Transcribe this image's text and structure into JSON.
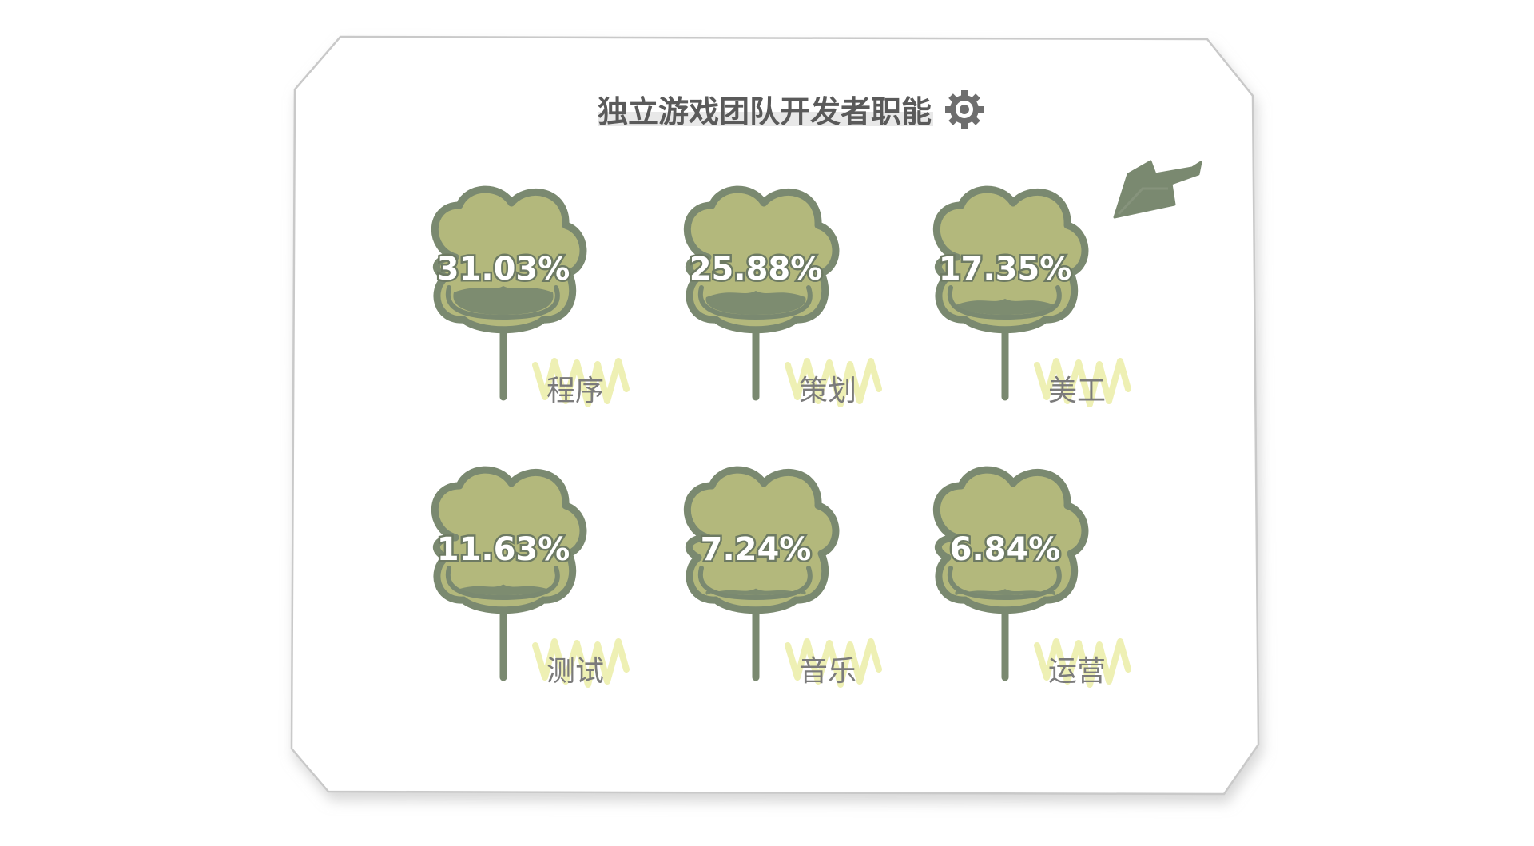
{
  "colors": {
    "leaf_fill": "#b3b87c",
    "leaf_outline": "#7a8970",
    "stem": "#7a8970",
    "value_text": "#ffffff",
    "label_text": "#7b7b7b",
    "label_scribble": "#eef0b4",
    "title_text": "#5a5a5a",
    "title_underline": "#e6e6e6",
    "arrow": "#7a8970",
    "card_border": "#c8c8c8",
    "card_shadow": "#d9d9d9"
  },
  "icons": {
    "title_icon": "gear-icon",
    "decoration": "arrow-icon"
  },
  "chart_data": {
    "type": "pictorial",
    "title": "独立游戏团队开发者职能",
    "categories": [
      "程序",
      "策划",
      "美工",
      "测试",
      "音乐",
      "运营"
    ],
    "values": [
      31.03,
      25.88,
      17.35,
      11.63,
      7.24,
      6.84
    ],
    "value_labels": [
      "31.03%",
      "25.88%",
      "17.35%",
      "11.63%",
      "7.24%",
      "6.84%"
    ],
    "unit": "%",
    "layout": "grid 3 columns × 2 rows",
    "legend": "none"
  }
}
